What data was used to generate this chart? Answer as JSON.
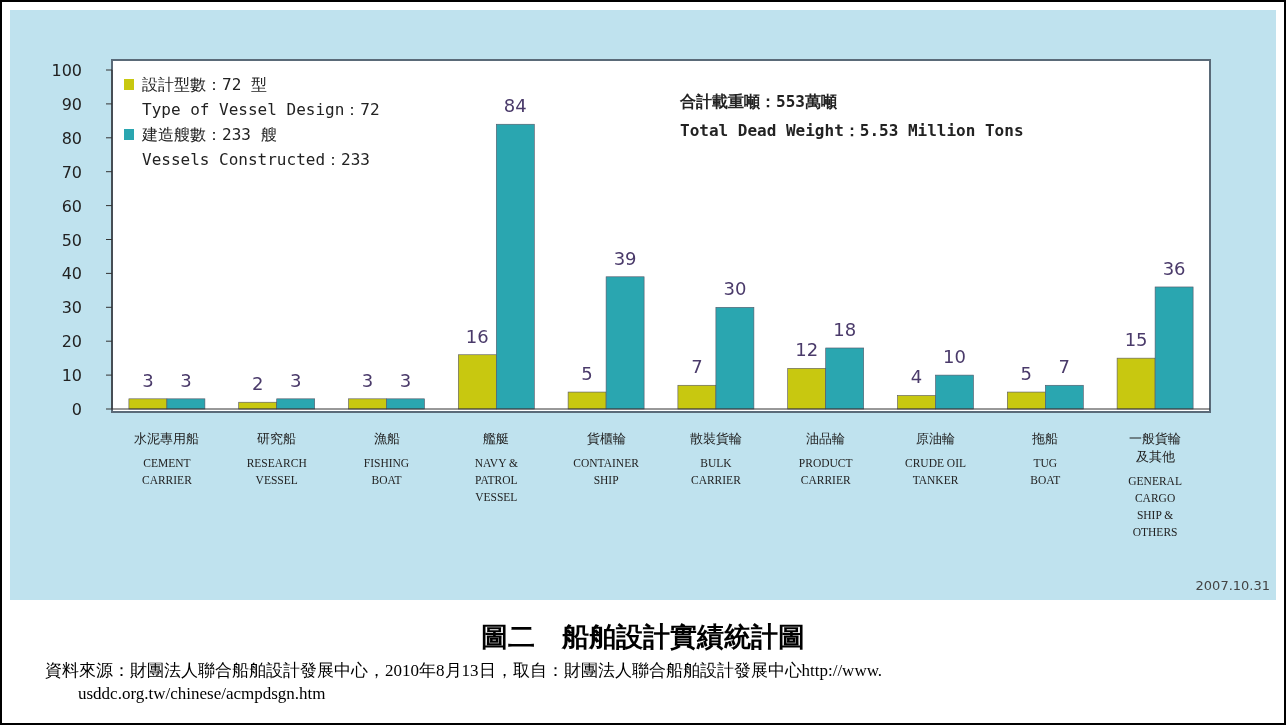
{
  "chart_data": {
    "type": "bar",
    "title": "圖二　船舶設計實績統計圖",
    "categories": [
      "水泥專用船\n\nCEMENT\nCARRIER",
      "研究船\n\nRESEARCH\nVESSEL",
      "漁船\n\nFISHING\nBOAT",
      "艦艇\n\nNAVY &\nPATROL\nVESSEL",
      "貨櫃輪\n\nCONTAINER\nSHIP",
      "散裝貨輪\n\nBULK\nCARRIER",
      "油品輪\n\nPRODUCT\nCARRIER",
      "原油輪\n\nCRUDE OIL\nTANKER",
      "拖船\n\nTUG\nBOAT",
      "一般貨輪及其他\n\nGENERAL\nCARGO\nSHIP &\nOTHERS"
    ],
    "series": [
      {
        "name": "設計型數：72 型\nType of Vessel Design：72",
        "color": "#c8c810",
        "values": [
          3,
          2,
          3,
          16,
          5,
          7,
          12,
          4,
          5,
          15
        ]
      },
      {
        "name": "建造艘數：233 艘\nVessels Constructed：233",
        "color": "#2aa6b0",
        "values": [
          3,
          3,
          3,
          84,
          39,
          30,
          18,
          10,
          7,
          36
        ]
      }
    ],
    "ylim": [
      0,
      100
    ],
    "yticks": [
      0,
      10,
      20,
      30,
      40,
      50,
      60,
      70,
      80,
      90,
      100
    ],
    "data_labels": true,
    "legend": "top left",
    "grid": false,
    "annotations": [
      "合計載重噸：553萬噸\nTotal Dead Weight：5.53 Million Tons",
      "2007.10.31",
      "資料來源：財團法人聯合船舶設計發展中心，2010年8月13日，取自：財團法人聯合船舶設計發展中心http://www.\nusddc.org.tw/chinese/acmpdsgn.htm"
    ]
  }
}
